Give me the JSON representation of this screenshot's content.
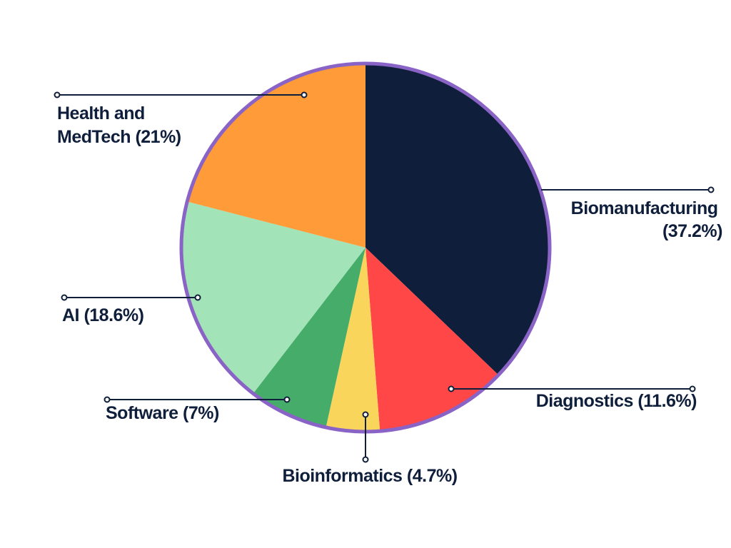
{
  "chart_data": {
    "type": "pie",
    "title": "",
    "slices": [
      {
        "label": "Biomanufacturing",
        "value_label": "(37.2%)",
        "value": 37.2,
        "color": "#0f1e3a"
      },
      {
        "label": "Diagnostics",
        "value_label": "(11.6%)",
        "value": 11.6,
        "color": "#ff4747"
      },
      {
        "label": "Bioinformatics",
        "value_label": "(4.7%)",
        "value": 4.7,
        "color": "#fad55c"
      },
      {
        "label": "Software",
        "value_label": "(7%)",
        "value": 7,
        "color": "#45ad69"
      },
      {
        "label": "AI",
        "value_label": "(18.6%)",
        "value": 18.6,
        "color": "#a3e3b8"
      },
      {
        "label": "Health and MedTech",
        "value_label": "(21%)",
        "value": 21,
        "color": "#ff9b38"
      }
    ],
    "outline_color": "#8a63c7",
    "legend": "none"
  },
  "labels": {
    "biomanufacturing": [
      "Biomanufacturing",
      "(37.2%)"
    ],
    "diagnostics": [
      "Diagnostics (11.6%)"
    ],
    "bioinformatics": [
      "Bioinformatics (4.7%)"
    ],
    "software": [
      "Software (7%)"
    ],
    "ai": [
      "AI (18.6%)"
    ],
    "health": [
      "Health and",
      "MedTech (21%)"
    ]
  }
}
